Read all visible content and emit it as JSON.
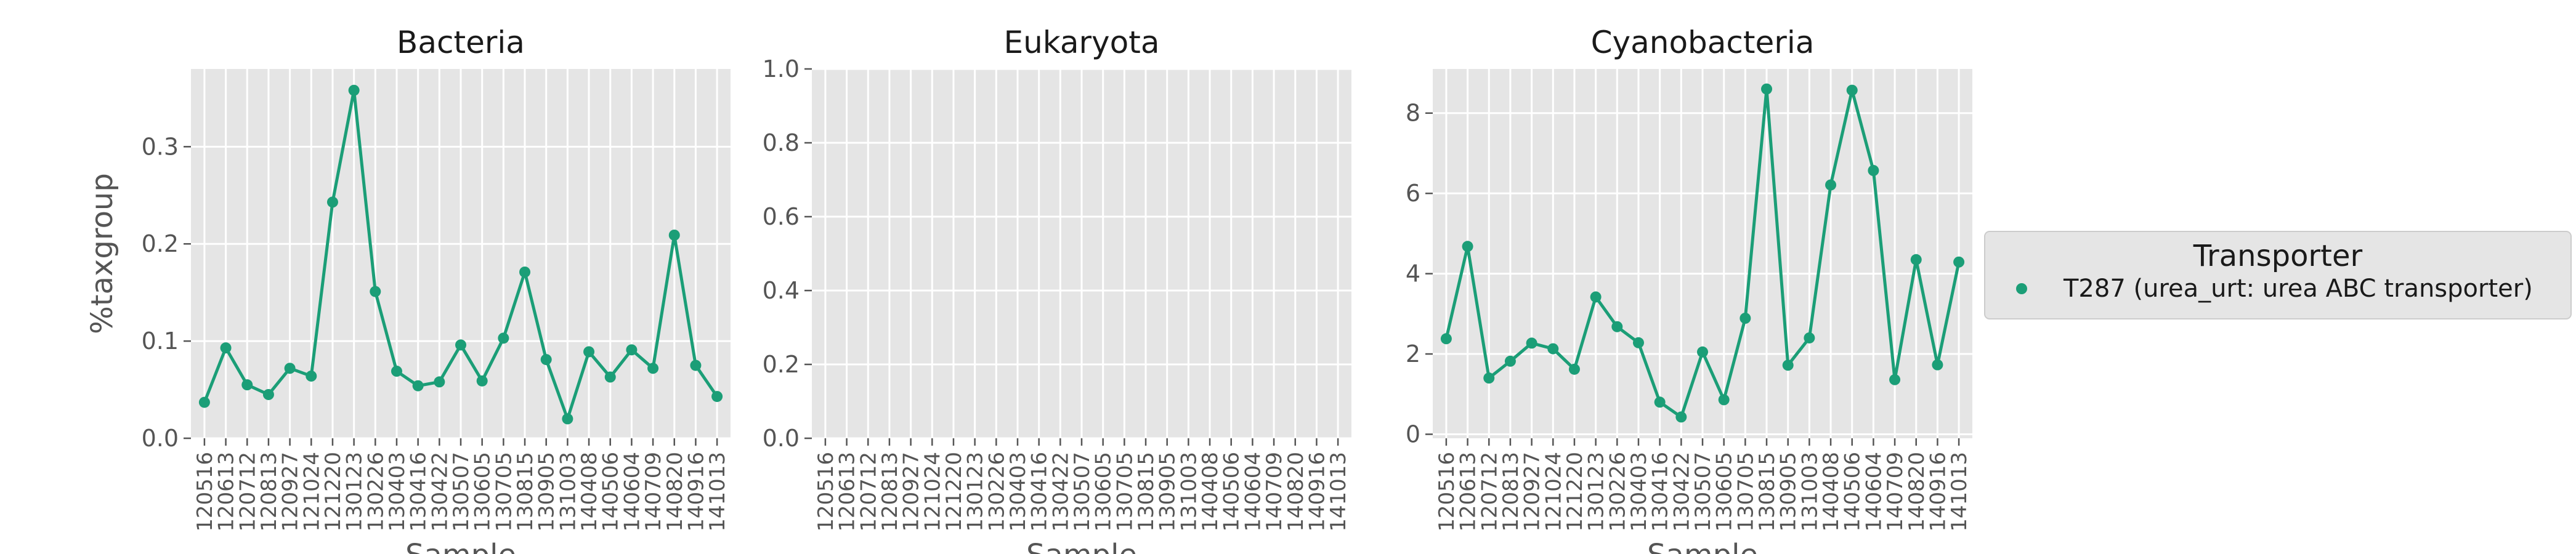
{
  "chart_data": {
    "type": "line",
    "ylabel": "%taxgroup",
    "xlabel": "Sample",
    "categories": [
      "120516",
      "120613",
      "120712",
      "120813",
      "120927",
      "121024",
      "121220",
      "130123",
      "130226",
      "130403",
      "130416",
      "130422",
      "130507",
      "130605",
      "130705",
      "130815",
      "130905",
      "131003",
      "140408",
      "140506",
      "140604",
      "140709",
      "140820",
      "140916",
      "141013"
    ],
    "series_color": "#1b9e77",
    "panels": [
      {
        "title": "Bacteria",
        "ylim": [
          0,
          0.38
        ],
        "yticks": [
          0.0,
          0.1,
          0.2,
          0.3
        ],
        "ytick_labels": [
          "0.0",
          "0.1",
          "0.2",
          "0.3"
        ],
        "show_ylabel": true,
        "values": [
          0.037,
          0.093,
          0.055,
          0.045,
          0.072,
          0.064,
          0.243,
          0.358,
          0.151,
          0.069,
          0.054,
          0.058,
          0.096,
          0.059,
          0.103,
          0.171,
          0.081,
          0.02,
          0.089,
          0.063,
          0.091,
          0.072,
          0.209,
          0.075,
          0.043
        ]
      },
      {
        "title": "Eukaryota",
        "ylim": [
          0,
          1.0
        ],
        "yticks": [
          0.0,
          0.2,
          0.4,
          0.6,
          0.8,
          1.0
        ],
        "ytick_labels": [
          "0.0",
          "0.2",
          "0.4",
          "0.6",
          "0.8",
          "1.0"
        ],
        "show_ylabel": false,
        "values": null
      },
      {
        "title": "Cyanobacteria",
        "ylim": [
          -0.1,
          9.1
        ],
        "yticks": [
          0,
          2,
          4,
          6,
          8
        ],
        "ytick_labels": [
          "0",
          "2",
          "4",
          "6",
          "8"
        ],
        "show_ylabel": false,
        "values": [
          2.38,
          4.68,
          1.4,
          1.82,
          2.27,
          2.13,
          1.62,
          3.42,
          2.68,
          2.28,
          0.8,
          0.43,
          2.05,
          0.86,
          2.89,
          8.6,
          1.72,
          2.4,
          6.21,
          8.57,
          6.57,
          1.36,
          4.35,
          1.73,
          4.29
        ]
      }
    ],
    "legend": {
      "title": "Transporter",
      "entries": [
        "T287 (urea_urt: urea ABC transporter)"
      ],
      "placement": "right"
    }
  }
}
